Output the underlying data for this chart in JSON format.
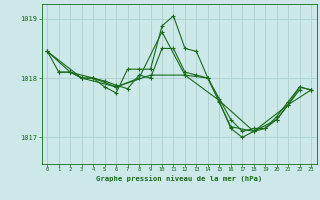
{
  "title": "Graphe pression niveau de la mer (hPa)",
  "background_color": "#cce8e8",
  "grid_color": "#aad0d0",
  "line_color": "#1a6b1a",
  "xlim": [
    -0.5,
    23.5
  ],
  "ylim": [
    1016.55,
    1019.25
  ],
  "yticks": [
    1017,
    1018,
    1019
  ],
  "xticks": [
    0,
    1,
    2,
    3,
    4,
    5,
    6,
    7,
    8,
    9,
    10,
    11,
    12,
    13,
    14,
    15,
    16,
    17,
    18,
    19,
    20,
    21,
    22,
    23
  ],
  "series": [
    {
      "x": [
        0,
        1,
        2,
        3,
        4,
        5,
        6,
        7,
        8,
        9,
        10,
        11,
        12,
        13,
        14,
        15,
        16,
        17,
        18,
        19,
        20,
        21,
        22,
        23
      ],
      "y": [
        1018.45,
        1018.1,
        1018.1,
        1018.0,
        1018.0,
        1017.85,
        1017.75,
        1018.15,
        1018.15,
        1018.15,
        1018.88,
        1019.05,
        1018.5,
        1018.45,
        1018.0,
        1017.6,
        1017.15,
        1017.0,
        1017.1,
        1017.15,
        1017.35,
        1017.6,
        1017.85,
        1017.8
      ]
    },
    {
      "x": [
        1,
        2,
        3,
        4,
        5,
        6,
        7,
        8,
        9,
        10,
        11,
        12,
        13,
        14,
        15,
        16,
        17,
        18,
        19,
        20,
        21,
        22,
        23
      ],
      "y": [
        1018.1,
        1018.1,
        1018.0,
        1018.0,
        1017.95,
        1017.88,
        1017.82,
        1018.05,
        1018.0,
        1018.5,
        1018.5,
        1018.1,
        1018.05,
        1018.0,
        1017.65,
        1017.3,
        1017.1,
        1017.15,
        1017.15,
        1017.3,
        1017.55,
        1017.85,
        1017.8
      ]
    },
    {
      "x": [
        0,
        2,
        4,
        6,
        8,
        10,
        12,
        14,
        16,
        18,
        20,
        22
      ],
      "y": [
        1018.45,
        1018.1,
        1018.0,
        1017.85,
        1018.0,
        1018.78,
        1018.05,
        1018.0,
        1017.18,
        1017.1,
        1017.3,
        1017.8
      ]
    },
    {
      "x": [
        0,
        3,
        6,
        9,
        12,
        15,
        18,
        21,
        23
      ],
      "y": [
        1018.45,
        1018.0,
        1017.85,
        1018.05,
        1018.05,
        1017.62,
        1017.1,
        1017.55,
        1017.8
      ]
    }
  ]
}
